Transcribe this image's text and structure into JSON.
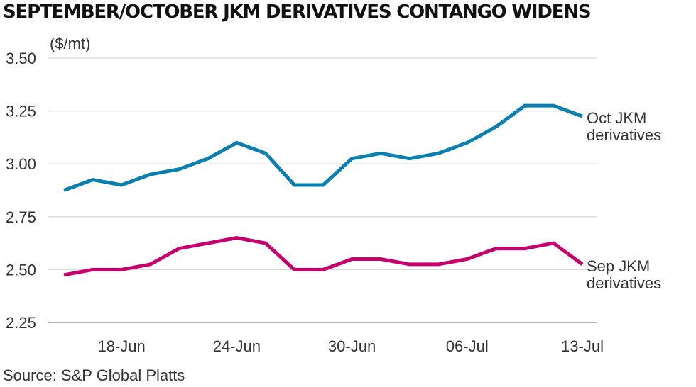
{
  "chart_data": {
    "type": "line",
    "title": "SEPTEMBER/OCTOBER JKM DERIVATIVES CONTANGO WIDENS",
    "ylabel": "($/mt)",
    "source": "Source: S&P Global Platts",
    "ylim": [
      2.25,
      3.5
    ],
    "yticks": [
      "3.50",
      "3.25",
      "3.00",
      "2.75",
      "2.50",
      "2.25"
    ],
    "ytick_values": [
      3.5,
      3.25,
      3.0,
      2.75,
      2.5,
      2.25
    ],
    "xlabels": [
      "18-Jun",
      "24-Jun",
      "30-Jun",
      "06-Jul",
      "13-Jul"
    ],
    "xlabel_positions": [
      2,
      6,
      10,
      14,
      18
    ],
    "grid": "horizontal",
    "series": [
      {
        "name": "Oct JKM derivatives",
        "name_lines": [
          "Oct JKM",
          "derivatives"
        ],
        "color": "#0a7fb0",
        "values": [
          2.875,
          2.925,
          2.9,
          2.95,
          2.975,
          3.025,
          3.1,
          3.05,
          2.9,
          2.9,
          3.025,
          3.05,
          3.025,
          3.05,
          3.1,
          3.175,
          3.275,
          3.275,
          3.225
        ]
      },
      {
        "name": "Sep JKM derivatives",
        "name_lines": [
          "Sep JKM",
          "derivatives"
        ],
        "color": "#c8006e",
        "values": [
          2.475,
          2.5,
          2.5,
          2.525,
          2.6,
          2.625,
          2.65,
          2.625,
          2.5,
          2.5,
          2.55,
          2.55,
          2.525,
          2.525,
          2.55,
          2.6,
          2.6,
          2.625,
          2.525
        ]
      }
    ]
  }
}
